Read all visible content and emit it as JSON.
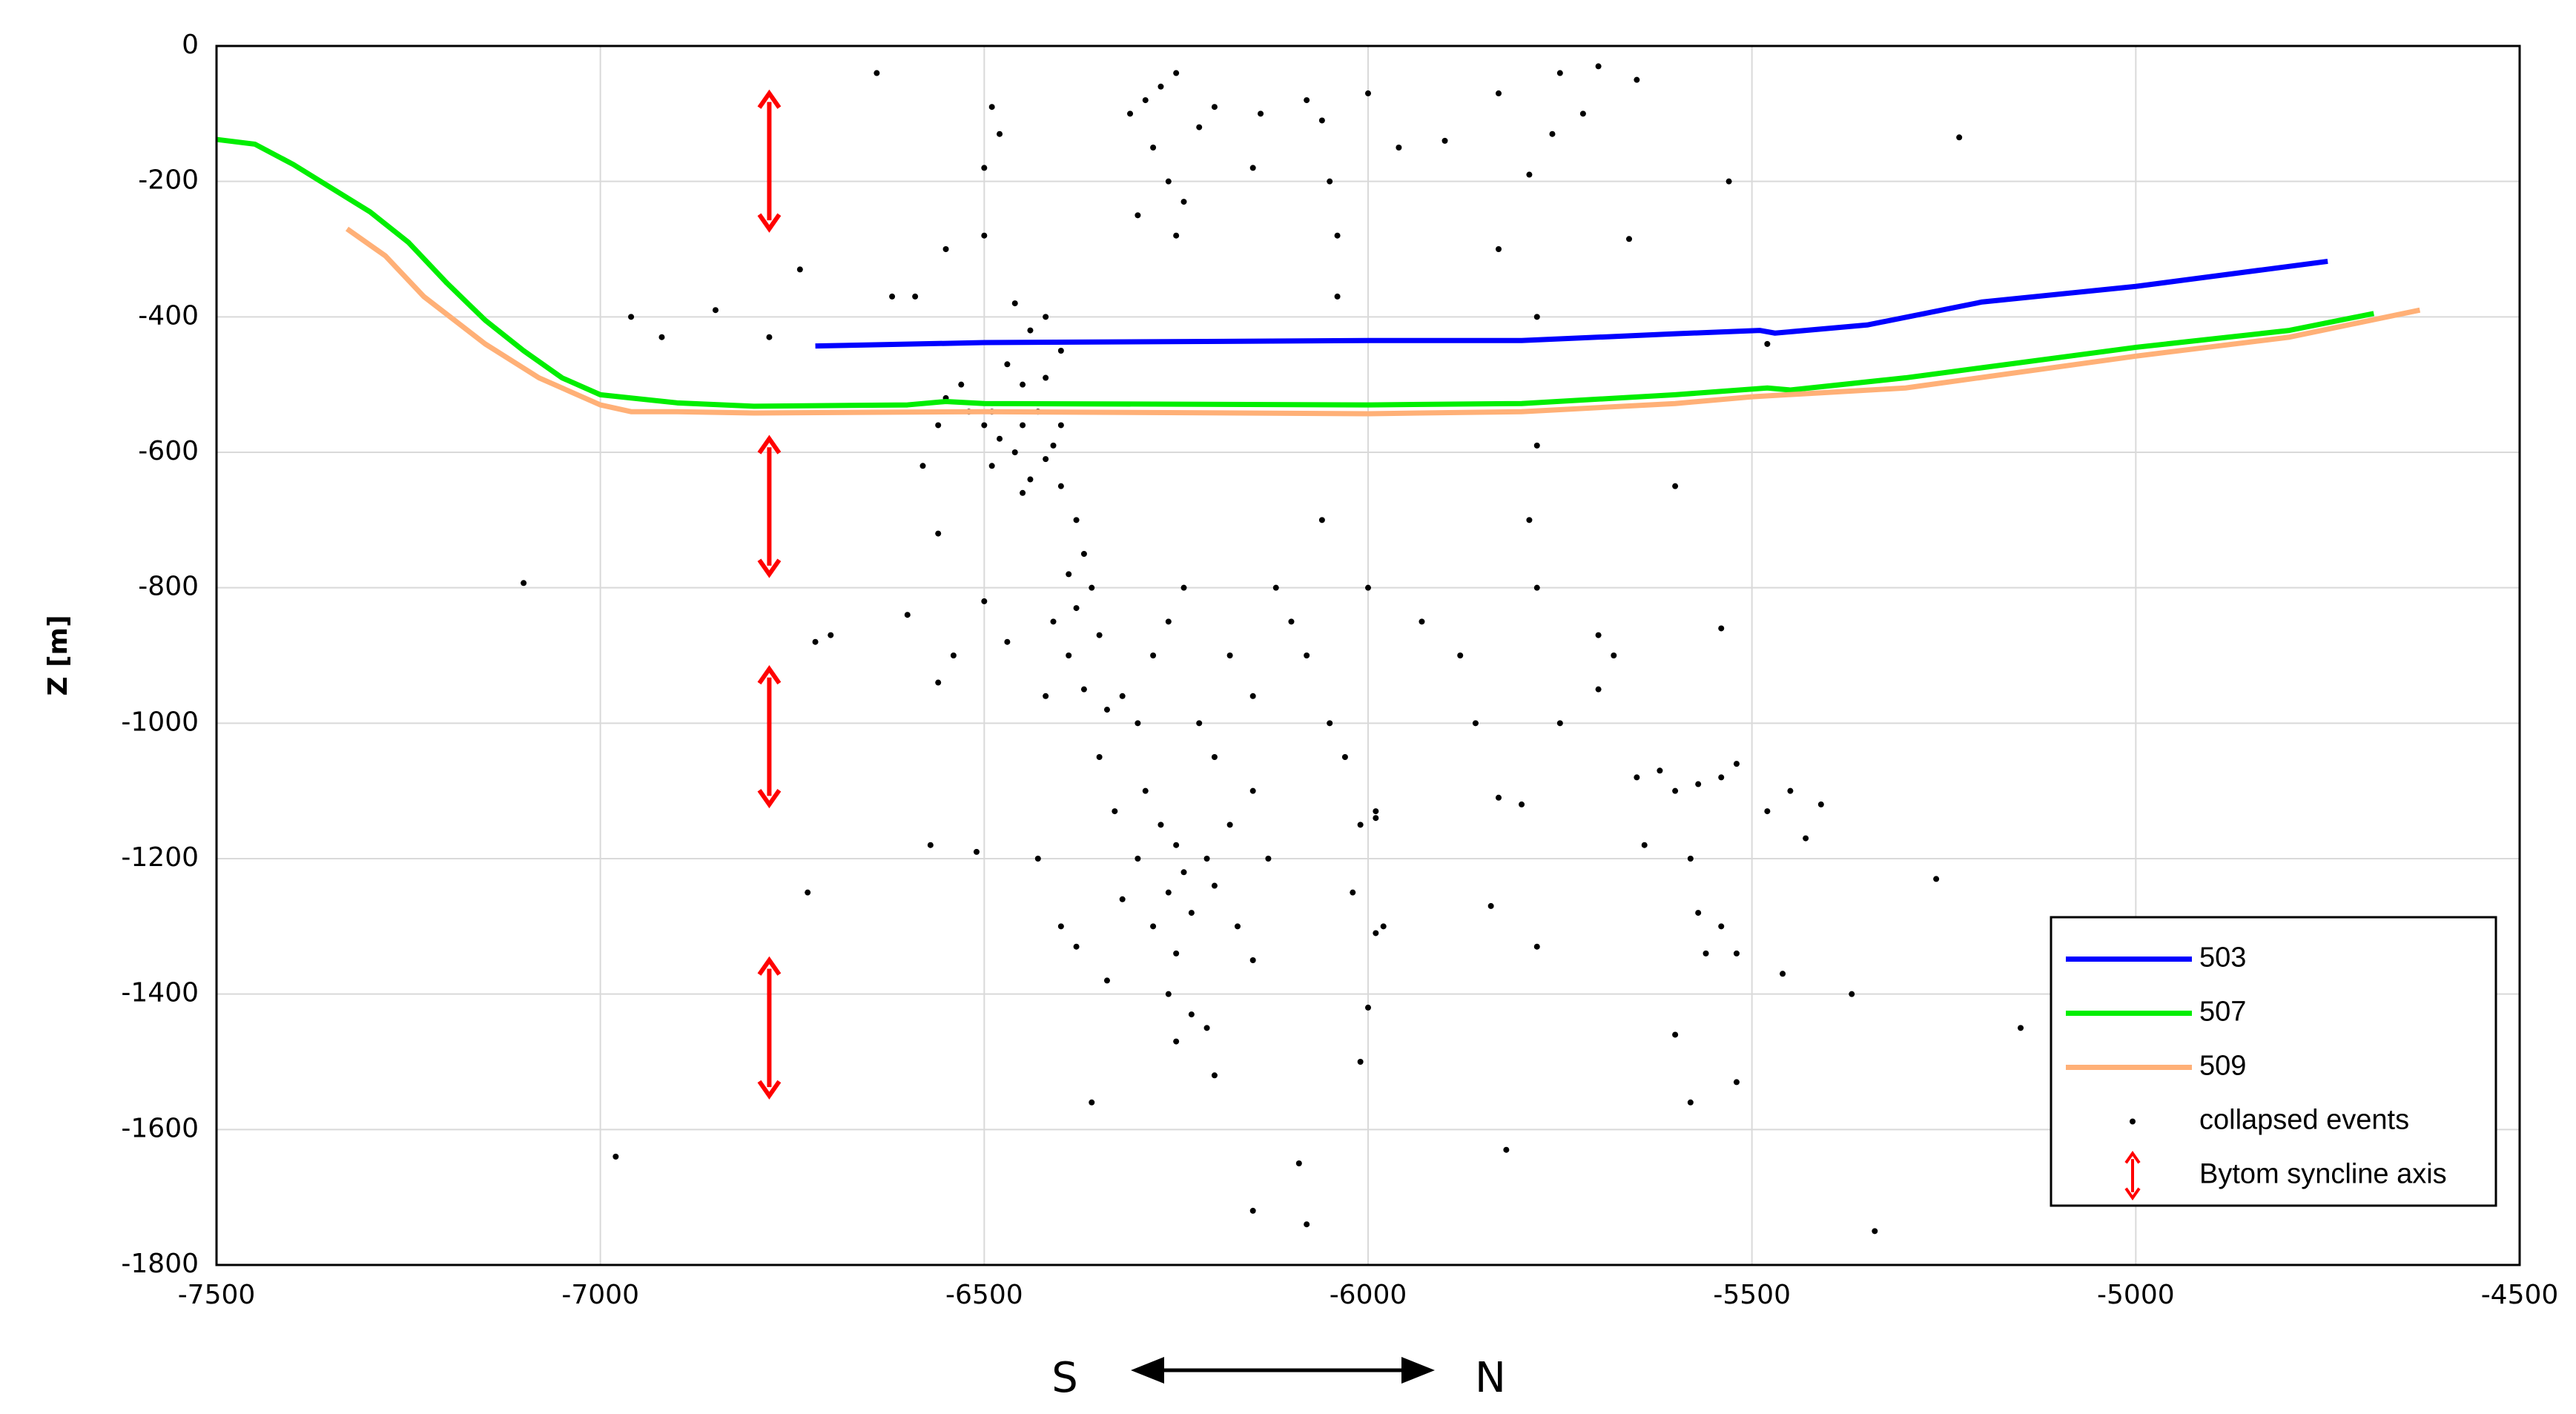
{
  "chart_data": {
    "type": "scatter",
    "y_label": "Z [m]",
    "direction": {
      "left": "S",
      "right": "N"
    },
    "xlim": [
      -7500,
      -4500
    ],
    "ylim": [
      -1800,
      0
    ],
    "xticks": [
      -7500,
      -7000,
      -6500,
      -6000,
      -5500,
      -5000,
      -4500
    ],
    "yticks": [
      -1800,
      -1600,
      -1400,
      -1200,
      -1000,
      -800,
      -600,
      -400,
      -200,
      0
    ],
    "grid": true,
    "legend": "lower right",
    "series": [
      {
        "name": "503",
        "color": "#0000ff",
        "kind": "line",
        "x": [
          -6720,
          -6500,
          -6000,
          -5800,
          -5600,
          -5490,
          -5470,
          -5350,
          -5200,
          -5000,
          -4750
        ],
        "values": [
          -443,
          -438,
          -435,
          -435,
          -425,
          -420,
          -424,
          -412,
          -378,
          -355,
          -318
        ]
      },
      {
        "name": "507",
        "color": "#00ee00",
        "kind": "line",
        "x": [
          -7500,
          -7450,
          -7400,
          -7300,
          -7250,
          -7200,
          -7150,
          -7100,
          -7050,
          -7000,
          -6900,
          -6800,
          -6600,
          -6550,
          -6500,
          -6000,
          -5800,
          -5600,
          -5480,
          -5450,
          -5300,
          -5000,
          -4800,
          -4690
        ],
        "values": [
          -138,
          -145,
          -175,
          -245,
          -290,
          -350,
          -405,
          -450,
          -490,
          -515,
          -527,
          -532,
          -530,
          -525,
          -528,
          -530,
          -528,
          -515,
          -505,
          -508,
          -490,
          -445,
          -420,
          -395
        ]
      },
      {
        "name": "509",
        "color": "#ffb077",
        "kind": "line",
        "x": [
          -7330,
          -7280,
          -7230,
          -7150,
          -7080,
          -7000,
          -6960,
          -6900,
          -6800,
          -6500,
          -6000,
          -5800,
          -5600,
          -5500,
          -5300,
          -5000,
          -4800,
          -4630
        ],
        "values": [
          -270,
          -310,
          -370,
          -440,
          -490,
          -530,
          -540,
          -540,
          -542,
          -540,
          -543,
          -540,
          -528,
          -518,
          -505,
          -458,
          -430,
          -390
        ]
      },
      {
        "name": "collapsed  events",
        "color": "#000000",
        "kind": "points",
        "x": [
          -6640,
          -6290,
          -6270,
          -6250,
          -6310,
          -6280,
          -6260,
          -6240,
          -6250,
          -6300,
          -6220,
          -6200,
          -6140,
          -6150,
          -6080,
          -6060,
          -6050,
          -6000,
          -5960,
          -5900,
          -5830,
          -5700,
          -5750,
          -5720,
          -5650,
          -5530,
          -5230,
          -5830,
          -5660,
          -6590,
          -6550,
          -6500,
          -6460,
          -6440,
          -6420,
          -6400,
          -6470,
          -6530,
          -6550,
          -6520,
          -6500,
          -6480,
          -6450,
          -6430,
          -6410,
          -6460,
          -6490,
          -6440,
          -6400,
          -6380,
          -6370,
          -6360,
          -6380,
          -6350,
          -6390,
          -6370,
          -6340,
          -6320,
          -6300,
          -6350,
          -6420,
          -6470,
          -6500,
          -6540,
          -6560,
          -6600,
          -6560,
          -6580,
          -6560,
          -6700,
          -6570,
          -6510,
          -6430,
          -6400,
          -6380,
          -6360,
          -6340,
          -6290,
          -6270,
          -6250,
          -6240,
          -6260,
          -6230,
          -6210,
          -6200,
          -6280,
          -6250,
          -6260,
          -6250,
          -6230,
          -6210,
          -6200,
          -6170,
          -6150,
          -6180,
          -6150,
          -6130,
          -6200,
          -6220,
          -6280,
          -6260,
          -6240,
          -6180,
          -6150,
          -6120,
          -6100,
          -6080,
          -6050,
          -6030,
          -6010,
          -5990,
          -5980,
          -6020,
          -6000,
          -6010,
          -6150,
          -6080,
          -6090,
          -6000,
          -6060,
          -5930,
          -5880,
          -5860,
          -5830,
          -5800,
          -5840,
          -5790,
          -5780,
          -5750,
          -5780,
          -5700,
          -5680,
          -5650,
          -5620,
          -5640,
          -5600,
          -5570,
          -5540,
          -5520,
          -5580,
          -5570,
          -5560,
          -5540,
          -5520,
          -5600,
          -5580,
          -5520,
          -5600,
          -5700,
          -5540,
          -5480,
          -5450,
          -5410,
          -5430,
          -5460,
          -5370,
          -5260,
          -5150,
          -5340,
          -5820,
          -5990,
          -7100,
          -6980,
          -6730,
          -6720,
          -6780,
          -6850,
          -6960,
          -6920,
          -6740,
          -6620,
          -5480,
          -5780,
          -5780,
          -5790,
          -5760,
          -6040,
          -6040,
          -5990,
          -6420,
          -6450,
          -6490,
          -6400,
          -6420,
          -6450,
          -6390,
          -6410,
          -6330,
          -6300,
          -6320,
          -6500,
          -6480,
          -6490
        ],
        "values": [
          -40,
          -80,
          -60,
          -40,
          -100,
          -150,
          -200,
          -230,
          -280,
          -250,
          -120,
          -90,
          -100,
          -180,
          -80,
          -110,
          -200,
          -70,
          -150,
          -140,
          -70,
          -30,
          -40,
          -100,
          -50,
          -200,
          -135,
          -300,
          -285,
          -370,
          -300,
          -280,
          -380,
          -420,
          -400,
          -450,
          -470,
          -500,
          -520,
          -540,
          -560,
          -580,
          -560,
          -540,
          -590,
          -600,
          -620,
          -640,
          -650,
          -700,
          -750,
          -800,
          -830,
          -870,
          -900,
          -950,
          -980,
          -960,
          -1000,
          -1050,
          -960,
          -880,
          -820,
          -900,
          -940,
          -840,
          -720,
          -620,
          -560,
          -870,
          -1180,
          -1190,
          -1200,
          -1300,
          -1330,
          -1560,
          -1380,
          -1100,
          -1150,
          -1180,
          -1220,
          -1250,
          -1280,
          -1200,
          -1240,
          -1300,
          -1340,
          -1400,
          -1470,
          -1430,
          -1450,
          -1520,
          -1300,
          -1350,
          -1150,
          -1100,
          -1200,
          -1050,
          -1000,
          -900,
          -850,
          -800,
          -900,
          -960,
          -800,
          -850,
          -900,
          -1000,
          -1050,
          -1150,
          -1130,
          -1300,
          -1250,
          -1420,
          -1500,
          -1720,
          -1740,
          -1650,
          -800,
          -700,
          -850,
          -900,
          -1000,
          -1110,
          -1120,
          -1270,
          -700,
          -800,
          -1000,
          -1330,
          -950,
          -900,
          -1080,
          -1070,
          -1180,
          -1100,
          -1090,
          -1080,
          -1060,
          -1200,
          -1280,
          -1340,
          -1300,
          -1340,
          -1460,
          -1560,
          -1530,
          -650,
          -870,
          -860,
          -1130,
          -1100,
          -1120,
          -1170,
          -1370,
          -1400,
          -1230,
          -1450,
          -1750,
          -1630,
          -1310,
          -793,
          -1640,
          -1250,
          -880,
          -430,
          -390,
          -400,
          -430,
          -330,
          -370,
          -440,
          -590,
          -400,
          -190,
          -130,
          -370,
          -280,
          -1140,
          -490,
          -500,
          -540,
          -560,
          -610,
          -660,
          -780,
          -850,
          -1130,
          -1200,
          -1260,
          -180,
          -130,
          -90
        ]
      },
      {
        "name": "Bytom syncline axis",
        "color": "#ff0000",
        "kind": "arrows",
        "x": [
          -6780,
          -6780,
          -6780,
          -6780
        ],
        "values": [
          -70,
          -580,
          -920,
          -1350
        ],
        "y_end": [
          -270,
          -780,
          -1120,
          -1550
        ]
      }
    ]
  }
}
